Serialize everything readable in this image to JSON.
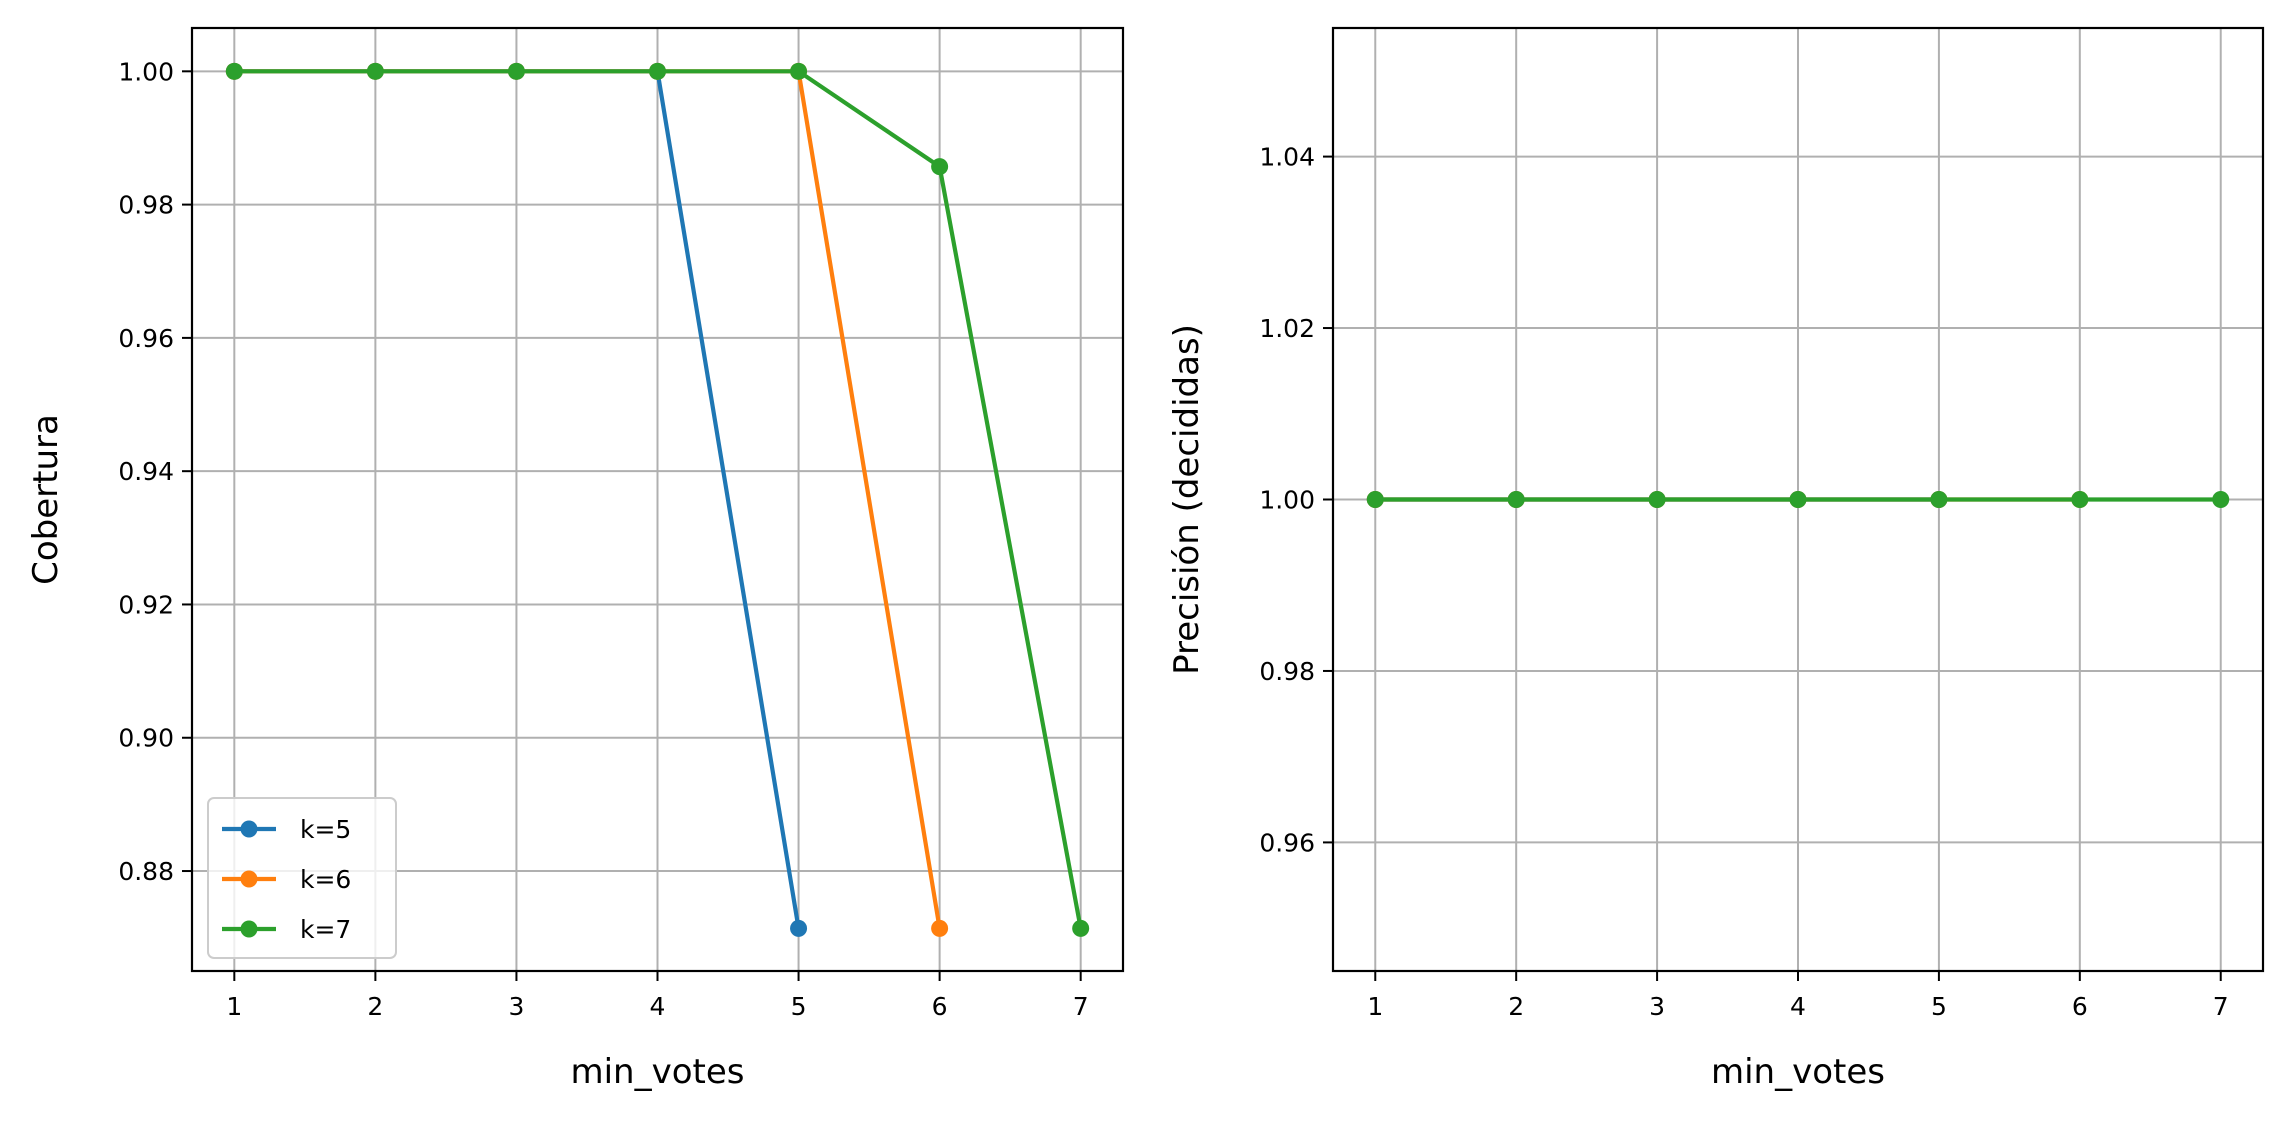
{
  "colors": {
    "k5": "#1f77b4",
    "k6": "#ff7f0e",
    "k7": "#2ca02c",
    "grid": "#b0b0b0",
    "axes": "#000000"
  },
  "chart_data": [
    {
      "type": "line",
      "xlabel": "min_votes",
      "ylabel": "Cobertura",
      "xlim": [
        0.7,
        7.3
      ],
      "ylim": [
        0.865,
        1.0065
      ],
      "xticks": [
        "1",
        "2",
        "3",
        "4",
        "5",
        "6",
        "7"
      ],
      "yticks": [
        "0.88",
        "0.90",
        "0.92",
        "0.94",
        "0.96",
        "0.98",
        "1.00"
      ],
      "grid": true,
      "legend": "lower-left",
      "series": [
        {
          "name": "k=5",
          "color": "#1f77b4",
          "x": [
            1,
            2,
            3,
            4,
            5
          ],
          "y": [
            1.0,
            1.0,
            1.0,
            1.0,
            0.8714
          ]
        },
        {
          "name": "k=6",
          "color": "#ff7f0e",
          "x": [
            1,
            2,
            3,
            4,
            5,
            6
          ],
          "y": [
            1.0,
            1.0,
            1.0,
            1.0,
            1.0,
            0.8714
          ]
        },
        {
          "name": "k=7",
          "color": "#2ca02c",
          "x": [
            1,
            2,
            3,
            4,
            5,
            6,
            7
          ],
          "y": [
            1.0,
            1.0,
            1.0,
            1.0,
            1.0,
            0.9857,
            0.8714
          ]
        }
      ]
    },
    {
      "type": "line",
      "xlabel": "min_votes",
      "ylabel": "Precisión (decididas)",
      "xlim": [
        0.7,
        7.3
      ],
      "ylim": [
        0.945,
        1.055
      ],
      "xticks": [
        "1",
        "2",
        "3",
        "4",
        "5",
        "6",
        "7"
      ],
      "yticks": [
        "0.96",
        "0.98",
        "1.00",
        "1.02",
        "1.04"
      ],
      "grid": true,
      "series": [
        {
          "color": "#1f77b4",
          "x": [
            1,
            2,
            3,
            4,
            5
          ],
          "y": [
            1.0,
            1.0,
            1.0,
            1.0,
            1.0
          ]
        },
        {
          "color": "#ff7f0e",
          "x": [
            1,
            2,
            3,
            4,
            5,
            6
          ],
          "y": [
            1.0,
            1.0,
            1.0,
            1.0,
            1.0,
            1.0
          ]
        },
        {
          "color": "#2ca02c",
          "x": [
            1,
            2,
            3,
            4,
            5,
            6,
            7
          ],
          "y": [
            1.0,
            1.0,
            1.0,
            1.0,
            1.0,
            1.0,
            1.0
          ]
        }
      ]
    }
  ]
}
